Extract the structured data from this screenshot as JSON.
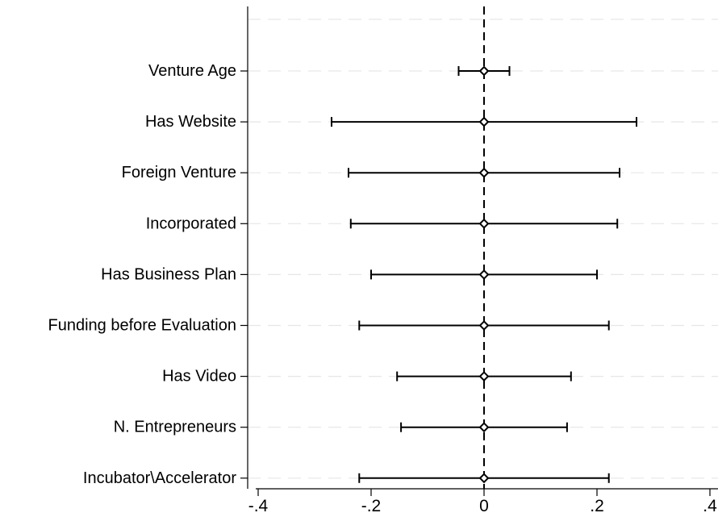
{
  "chart_data": {
    "type": "scatter",
    "title": "",
    "xlabel": "",
    "ylabel": "",
    "xlim": [
      -0.41,
      0.41
    ],
    "xticks": [
      -0.4,
      -0.2,
      0,
      0.2,
      0.4
    ],
    "xtick_labels": [
      "-.4",
      "-.2",
      "0",
      ".2",
      ".4"
    ],
    "grid": true,
    "reference_line_x": 0,
    "categories": [
      "Venture Age",
      "Has Website",
      "Foreign Venture",
      "Incorporated",
      "Has Business Plan",
      "Funding before Evaluation",
      "Has Video",
      "N. Entrepreneurs",
      "Incubator\\Accelerator"
    ],
    "series": [
      {
        "estimates": [
          0.0,
          0.0,
          0.0,
          0.0,
          0.0,
          0.0,
          0.0,
          0.0,
          0.0
        ],
        "ci_low": [
          -0.045,
          -0.27,
          -0.24,
          -0.236,
          -0.2,
          -0.221,
          -0.154,
          -0.147,
          -0.221
        ],
        "ci_high": [
          0.045,
          0.27,
          0.24,
          0.236,
          0.2,
          0.221,
          0.154,
          0.147,
          0.221
        ]
      }
    ]
  }
}
